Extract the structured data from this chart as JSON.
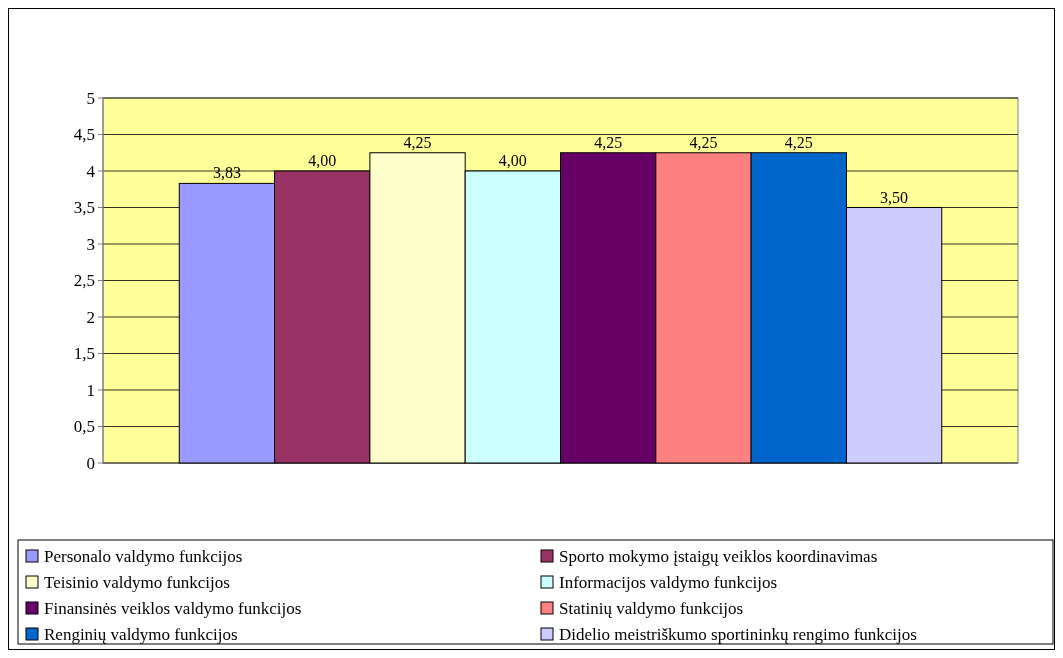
{
  "chart_data": {
    "type": "bar",
    "categories": [
      null
    ],
    "ylim": [
      0,
      5
    ],
    "yticks": [
      0,
      {
        "value": 0.5,
        "label": "0,5"
      },
      1,
      {
        "value": 1.5,
        "label": "1,5"
      },
      2,
      {
        "value": 2.5,
        "label": "2,5"
      },
      3,
      {
        "value": 3.5,
        "label": "3,5"
      },
      4,
      {
        "value": 4.5,
        "label": "4,5"
      },
      5
    ],
    "grid": "y",
    "legend": "bottom",
    "series": [
      {
        "name": "Personalo valdymo funkcijos",
        "color": "#9999ff",
        "values": [
          3.83
        ],
        "value_labels": [
          "3,83"
        ]
      },
      {
        "name": "Sporto mokymo įstaigų veiklos koordinavimas",
        "color": "#993366",
        "values": [
          4.0
        ],
        "value_labels": [
          "4,00"
        ]
      },
      {
        "name": "Teisinio valdymo funkcijos",
        "color": "#ffffcc",
        "values": [
          4.25
        ],
        "value_labels": [
          "4,25"
        ]
      },
      {
        "name": "Informacijos valdymo funkcijos",
        "color": "#ccffff",
        "values": [
          4.0
        ],
        "value_labels": [
          "4,00"
        ]
      },
      {
        "name": "Finansinės veiklos valdymo funkcijos",
        "color": "#660066",
        "values": [
          4.25
        ],
        "value_labels": [
          "4,25"
        ]
      },
      {
        "name": "Statinių valdymo funkcijos",
        "color": "#ff8080",
        "values": [
          4.25
        ],
        "value_labels": [
          "4,25"
        ]
      },
      {
        "name": "Renginių valdymo funkcijos",
        "color": "#0066cc",
        "values": [
          4.25
        ],
        "value_labels": [
          "4,25"
        ]
      },
      {
        "name": "Didelio meistriškumo sportininkų rengimo funkcijos",
        "color": "#ccccff",
        "values": [
          3.5
        ],
        "value_labels": [
          "3,50"
        ]
      }
    ]
  }
}
